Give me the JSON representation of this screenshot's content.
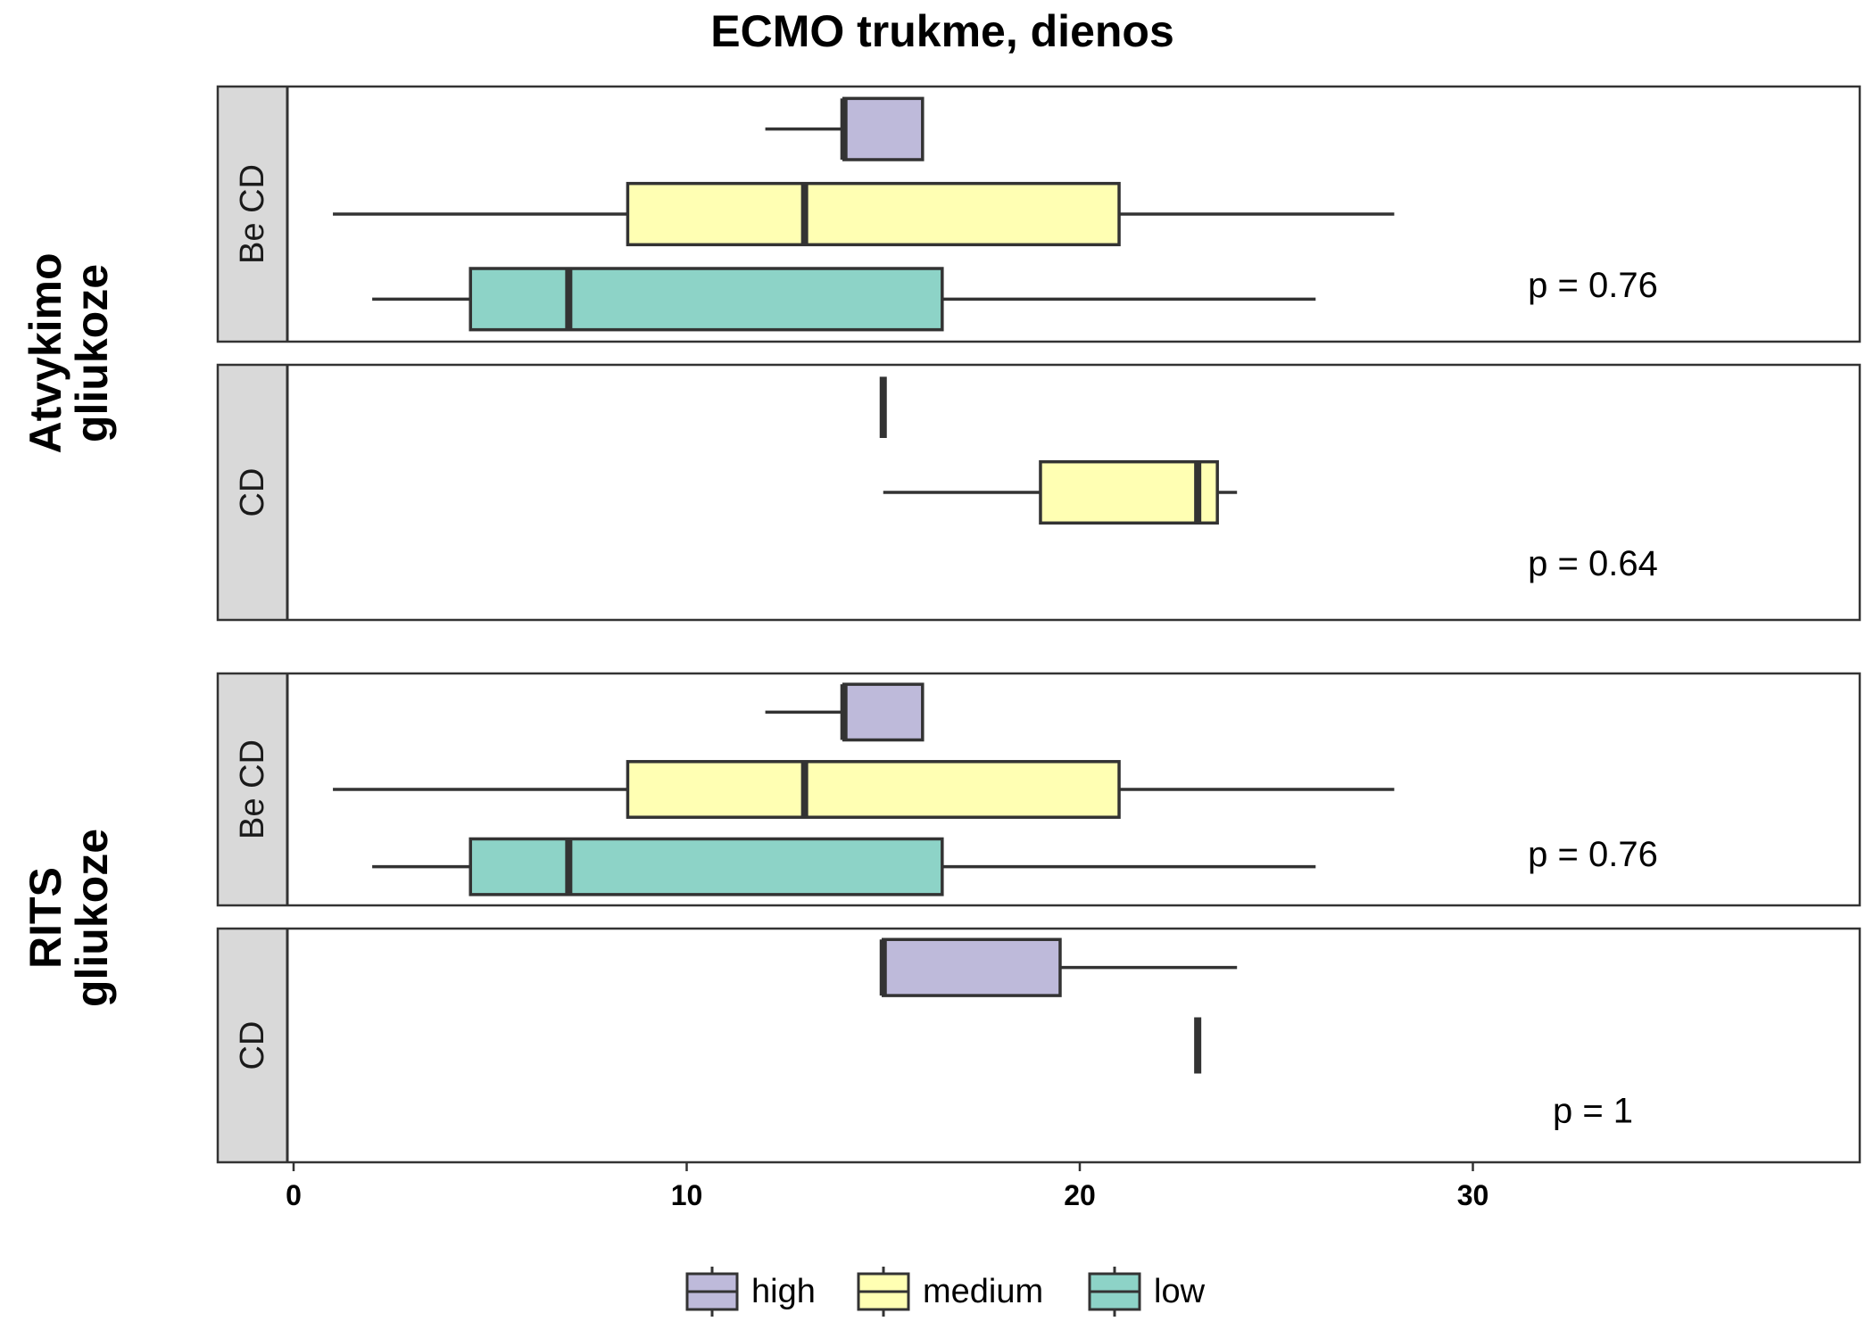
{
  "chart_data": {
    "type": "boxplot",
    "title": "ECMO trukme, dienos",
    "orientation": "horizontal",
    "x_range": [
      -3.7,
      39.4
    ],
    "x_ticks": [
      0,
      10,
      20,
      30
    ],
    "row_groups": [
      {
        "label": "Atvykimo\ngliukoze",
        "panels": [
          {
            "strip": "Be CD",
            "p_label": "p = 0.76",
            "boxes": [
              {
                "series": "high",
                "whisker_low": 12,
                "q1": 14,
                "median": 14,
                "q3": 16,
                "whisker_high": 16
              },
              {
                "series": "medium",
                "whisker_low": 1,
                "q1": 8.5,
                "median": 13,
                "q3": 21,
                "whisker_high": 28
              },
              {
                "series": "low",
                "whisker_low": 2,
                "q1": 4.5,
                "median": 7,
                "q3": 16.5,
                "whisker_high": 26
              }
            ]
          },
          {
            "strip": "CD",
            "p_label": "p = 0.64",
            "boxes": [
              {
                "series": "high",
                "whisker_low": 15,
                "q1": 15,
                "median": 15,
                "q3": 15,
                "whisker_high": 15
              },
              {
                "series": "medium",
                "whisker_low": 15,
                "q1": 19,
                "median": 23,
                "q3": 23.5,
                "whisker_high": 24
              }
            ]
          }
        ]
      },
      {
        "label": "RITS\ngliukoze",
        "panels": [
          {
            "strip": "Be CD",
            "p_label": "p = 0.76",
            "boxes": [
              {
                "series": "high",
                "whisker_low": 12,
                "q1": 14,
                "median": 14,
                "q3": 16,
                "whisker_high": 16
              },
              {
                "series": "medium",
                "whisker_low": 1,
                "q1": 8.5,
                "median": 13,
                "q3": 21,
                "whisker_high": 28
              },
              {
                "series": "low",
                "whisker_low": 2,
                "q1": 4.5,
                "median": 7,
                "q3": 16.5,
                "whisker_high": 26
              }
            ]
          },
          {
            "strip": "CD",
            "p_label": "p = 1",
            "boxes": [
              {
                "series": "high",
                "whisker_low": 15,
                "q1": 15,
                "median": 15,
                "q3": 19.5,
                "whisker_high": 24
              },
              {
                "series": "medium",
                "whisker_low": 23,
                "q1": 23,
                "median": 23,
                "q3": 23,
                "whisker_high": 23
              }
            ]
          }
        ]
      }
    ],
    "legend": {
      "placement": "bottom",
      "entries": [
        {
          "name": "high",
          "color": "#BEBADA"
        },
        {
          "name": "medium",
          "color": "#FFFFB3"
        },
        {
          "name": "low",
          "color": "#8DD3C7"
        }
      ]
    },
    "grid": false
  }
}
